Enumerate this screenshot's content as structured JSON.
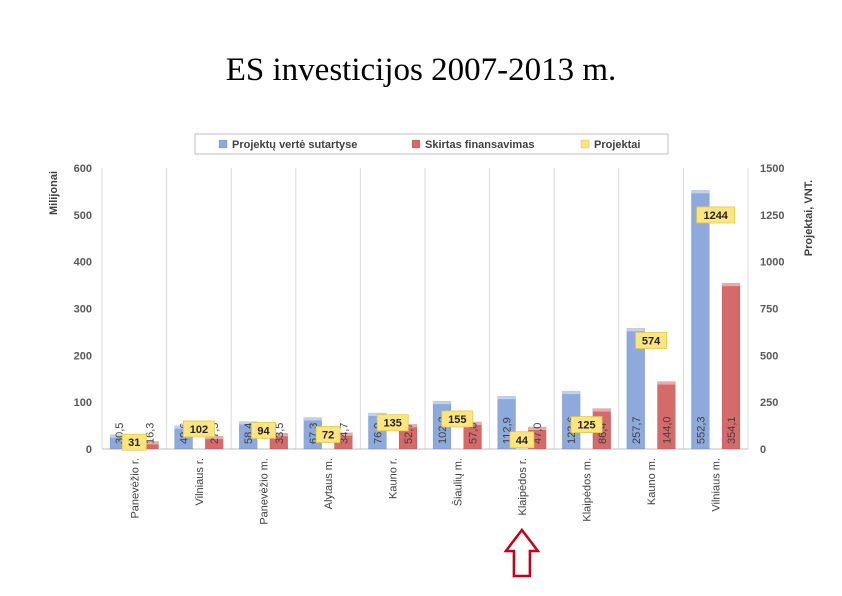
{
  "slide": {
    "title": "ES  investicijos 2007-2013 m."
  },
  "chart_data": {
    "type": "bar",
    "categories": [
      "Panevėžio r.",
      "Vilniaus r.",
      "Panevėžio m.",
      "Alytaus m.",
      "Kauno r.",
      "Šiaulių m.",
      "Klaipėdos r.",
      "Klaipėdos m.",
      "Kauno m.",
      "Vilniaus m."
    ],
    "series": [
      {
        "name": "Projektų vertė sutartyse",
        "axis": "left",
        "color": "#8EA9DB",
        "values": [
          30.5,
          49.6,
          58.4,
          67.3,
          76.9,
          102.2,
          112.9,
          123.6,
          257.7,
          552.3
        ],
        "labels": [
          "30,5",
          "49,6",
          "58,4",
          "67,3",
          "76,9",
          "102,2",
          "112,9",
          "123,6",
          "257,7",
          "552,3"
        ]
      },
      {
        "name": "Skirtas finansavimas",
        "axis": "left",
        "color": "#D46A6A",
        "values": [
          16.3,
          27.5,
          33.5,
          34.7,
          52.7,
          57.8,
          47.0,
          86.4,
          144.0,
          354.1
        ],
        "labels": [
          "16,3",
          "27,5",
          "33,5",
          "34,7",
          "52,7",
          "57,8",
          "47,0",
          "86,4",
          "144,0",
          "354,1"
        ]
      },
      {
        "name": "Projektai",
        "axis": "right",
        "color": "#FFE57F",
        "values": [
          31,
          102,
          94,
          72,
          135,
          155,
          44,
          125,
          574,
          1244
        ],
        "labels": [
          "31",
          "102",
          "94",
          "72",
          "135",
          "155",
          "44",
          "125",
          "574",
          "1244"
        ]
      }
    ],
    "ylabel": "Milijonai",
    "ylim": [
      0,
      600
    ],
    "yticks": [
      "0",
      "100",
      "200",
      "300",
      "400",
      "500",
      "600"
    ],
    "y2label": "Projektai, VNT.",
    "y2lim": [
      0,
      1500
    ],
    "y2ticks": [
      "0",
      "250",
      "500",
      "750",
      "1000",
      "1250",
      "1500"
    ],
    "grid": "vertical",
    "legend": "top",
    "highlight_category": "Klaipėdos r.",
    "highlight_color": "#C0001A"
  }
}
